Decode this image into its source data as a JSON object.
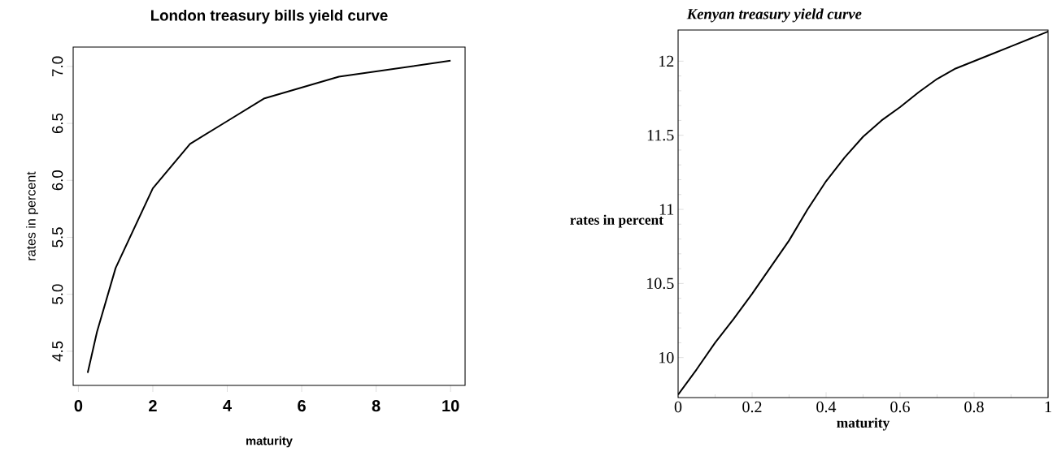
{
  "chart_data": [
    {
      "type": "line",
      "title": "London treasury bills yield curve",
      "xlabel": "maturity",
      "ylabel": "rates in percent",
      "color": "#000000",
      "x": [
        0.25,
        0.5,
        1,
        2,
        3,
        4,
        5,
        7,
        10
      ],
      "values": [
        4.31,
        4.67,
        5.23,
        5.93,
        6.32,
        6.52,
        6.72,
        6.91,
        7.05
      ],
      "xlim": [
        -0.14,
        10.39
      ],
      "ylim": [
        4.2,
        7.17
      ],
      "xticks": [
        0,
        2,
        4,
        6,
        8,
        10
      ],
      "yticks": [
        4.5,
        {
          "value": 5,
          "label": "5.0"
        },
        5.5,
        {
          "value": 6,
          "label": "6.0"
        },
        6.5,
        {
          "value": 7,
          "label": "7.0"
        }
      ]
    },
    {
      "type": "line",
      "title": "Kenyan treasury yield curve",
      "xlabel": "maturity",
      "ylabel": "rates in percent",
      "color": "#000000",
      "x": [
        0,
        0.05,
        0.1,
        0.15,
        0.2,
        0.25,
        0.3,
        0.35,
        0.4,
        0.45,
        0.5,
        0.55,
        0.6,
        0.65,
        0.7,
        0.75,
        0.8,
        0.85,
        0.9,
        0.95,
        1
      ],
      "values": [
        9.75,
        9.92,
        10.1,
        10.26,
        10.43,
        10.61,
        10.79,
        11.0,
        11.19,
        11.35,
        11.49,
        11.6,
        11.69,
        11.79,
        11.88,
        11.95,
        12.0,
        12.05,
        12.1,
        12.15,
        12.2
      ],
      "xlim": [
        0,
        1
      ],
      "ylim": [
        9.73,
        12.21
      ],
      "xticks": [
        0,
        0.2,
        0.4,
        0.6,
        0.8,
        1
      ],
      "yticks": [
        10,
        10.5,
        11,
        11.5,
        12
      ]
    }
  ]
}
